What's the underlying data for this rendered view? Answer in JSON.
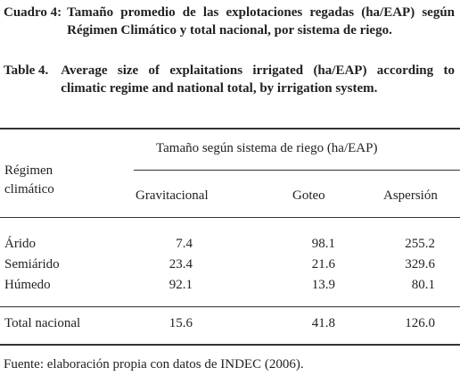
{
  "captions": [
    {
      "label": "Cuadro 4:",
      "text": "Tamaño promedio de las explotaciones regadas (ha/EAP) según Régimen Climático y total nacional, por sistema de riego."
    },
    {
      "label": "Table 4.",
      "text": "Average size of explaitations irrigated (ha/EAP) according to climatic regime and national total, by irrigation system."
    }
  ],
  "table": {
    "row_header": "Régimen climático",
    "group_header": "Tamaño según sistema de riego (ha/EAP)",
    "columns": [
      "Gravitacional",
      "Goteo",
      "Aspersión"
    ],
    "rows": [
      [
        "Árido",
        "7.4",
        "98.1",
        "255.2"
      ],
      [
        "Semiárido",
        "23.4",
        "21.6",
        "329.6"
      ],
      [
        "Húmedo",
        "92.1",
        "13.9",
        "80.1"
      ]
    ],
    "total": [
      "Total nacional",
      "15.6",
      "41.8",
      "126.0"
    ]
  },
  "footnote": "Fuente: elaboración propia con datos de INDEC (2006)."
}
